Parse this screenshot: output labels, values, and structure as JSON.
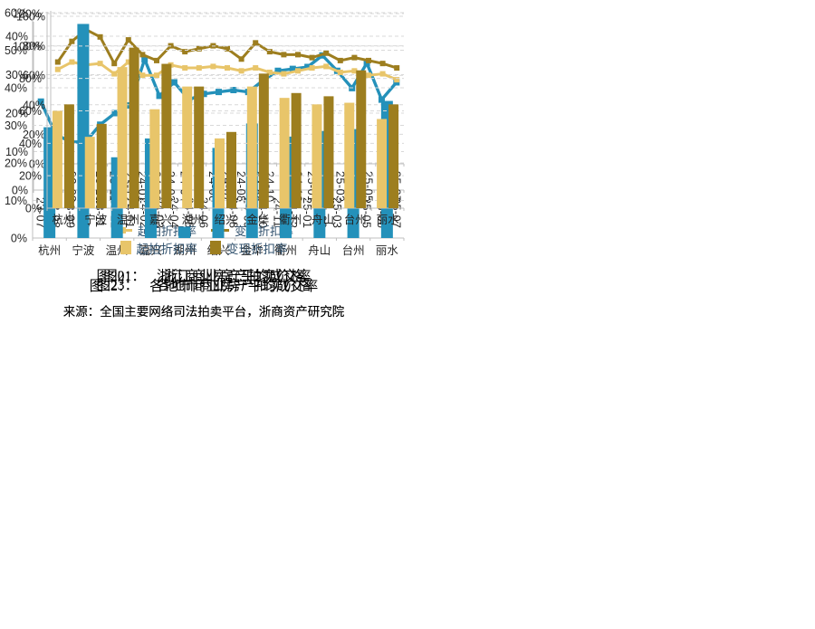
{
  "page": {
    "background": "#FFFFFF"
  },
  "colors": {
    "teal": "#2491BA",
    "gold_light": "#E8C56A",
    "gold_dark": "#9D7E1F",
    "grid": "#D9D9D9",
    "axis": "#BFBFBF",
    "tick": "#262626",
    "legend_text": "#33536F"
  },
  "source_note": "来源：全国主要网络司法拍卖平台，浙商资产研究院",
  "figures": [
    {
      "label": "图20：",
      "title": "浙江商业房产平均成交率"
    },
    {
      "label": "图21：",
      "title": "浙江商业房产拍卖价格"
    },
    {
      "label": "图22：",
      "title": "各地市商业房产平均成交率"
    },
    {
      "label": "图23：",
      "title": "各地市商业房产拍卖价格"
    }
  ],
  "chart_data": [
    {
      "type": "line",
      "title": "浙江商业房产平均成交率",
      "categories": [
        "23-07",
        "23-08",
        "23-09",
        "23-10",
        "23-11",
        "23-12",
        "24-01",
        "24-02",
        "24-03",
        "24-04",
        "24-05",
        "24-06",
        "24-07",
        "24-08",
        "24-09",
        "24-10",
        "24-11",
        "24-12",
        "25-01",
        "25-02",
        "25-03",
        "25-04",
        "25-05",
        "25-06",
        "25-07"
      ],
      "series": [
        {
          "name": "平均成交率",
          "color_key": "teal",
          "values": [
            23,
            14.5,
            12.5,
            12.5,
            17,
            20,
            22,
            34,
            24.5,
            28,
            23.5,
            25,
            25.5,
            26,
            25.5,
            28.5,
            31,
            31.5,
            32,
            35,
            31,
            26.5,
            33,
            23.5,
            28
          ]
        }
      ],
      "ylim": [
        0,
        40
      ],
      "ytick": 10,
      "grid": "dashed",
      "legend": false
    },
    {
      "type": "line",
      "title": "浙江商业房产拍卖价格",
      "categories": [
        "23-07",
        "23-08",
        "23-09",
        "23-10",
        "23-11",
        "23-12",
        "24-01",
        "24-02",
        "24-03",
        "24-04",
        "24-05",
        "24-06",
        "24-07",
        "24-08",
        "24-09",
        "24-10",
        "24-11",
        "24-12",
        "25-01",
        "25-02",
        "25-03",
        "25-04",
        "25-05",
        "25-06",
        "25-07"
      ],
      "series": [
        {
          "name": "起拍折扣率",
          "color_key": "gold_light",
          "values": [
            64,
            69,
            67,
            68,
            61,
            69,
            60,
            60,
            67,
            65,
            65,
            66,
            65,
            63,
            65,
            62,
            61,
            63,
            65,
            66,
            62,
            63,
            60,
            61,
            57
          ]
        },
        {
          "name": "变现折扣率",
          "color_key": "gold_dark",
          "values": [
            69,
            83,
            91,
            86,
            68,
            84,
            74,
            70,
            80,
            76,
            78,
            80,
            78,
            71,
            82,
            76,
            74,
            74,
            72,
            75,
            70,
            72,
            70,
            68,
            65
          ]
        }
      ],
      "ylim": [
        0,
        100
      ],
      "ytick": 20,
      "grid": "dashed",
      "legend": "bottom"
    },
    {
      "type": "bar",
      "title": "各地市商业房产平均成交率",
      "categories": [
        "杭州",
        "宁波",
        "温州",
        "嘉兴",
        "湖州",
        "绍兴",
        "金华",
        "衢州",
        "舟山",
        "台州",
        "丽水"
      ],
      "series": [
        {
          "name": "平均成交率",
          "color_key": "teal",
          "values": [
            29.5,
            57,
            21.5,
            26.5,
            3,
            24,
            30.5,
            27,
            28.5,
            29,
            36.5
          ]
        }
      ],
      "ylim": [
        0,
        60
      ],
      "ytick": 10,
      "grid": "dashed",
      "legend": false
    },
    {
      "type": "bar",
      "title": "各地市商业房产拍卖价格",
      "categories": [
        "杭州",
        "宁波",
        "温州",
        "嘉兴",
        "湖州",
        "绍兴",
        "金华",
        "衢州",
        "舟山",
        "台州",
        "丽水"
      ],
      "series": [
        {
          "name": "起拍折扣率",
          "color_key": "gold_light",
          "values": [
            60,
            44,
            87,
            61,
            75,
            43,
            75,
            68,
            64,
            65,
            55
          ]
        },
        {
          "name": "变现折扣率",
          "color_key": "gold_dark",
          "values": [
            64,
            52,
            99,
            89,
            75,
            47,
            83,
            71,
            69,
            85,
            64
          ]
        }
      ],
      "ylim": [
        0,
        120
      ],
      "ytick": 20,
      "grid": "dashed",
      "legend": "bottom"
    }
  ]
}
